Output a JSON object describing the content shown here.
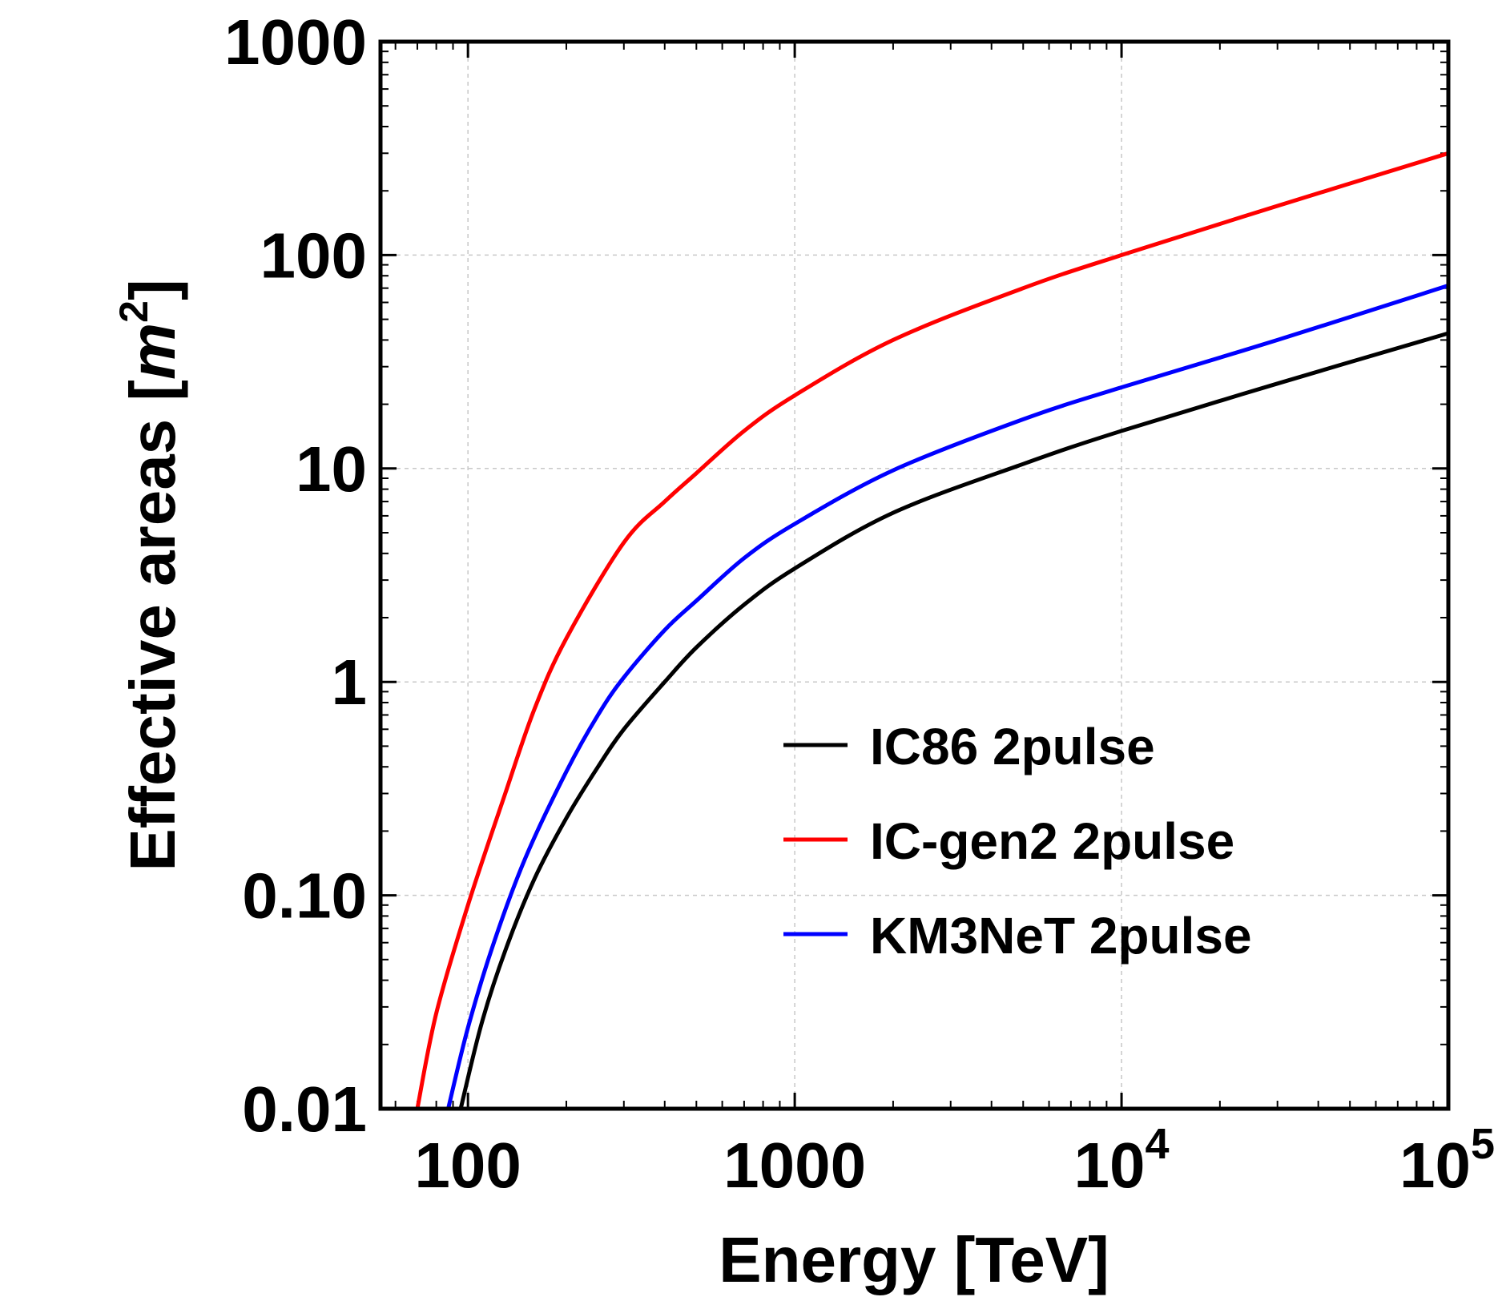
{
  "chart_data": {
    "type": "line",
    "title": "",
    "xlabel": "Energy [TeV]",
    "ylabel": {
      "main": "Effective areas [",
      "unit": "m",
      "exp": "2",
      "close": "]"
    },
    "xscale": "log",
    "yscale": "log",
    "xlim": [
      54,
      100000
    ],
    "ylim": [
      0.01,
      1000
    ],
    "grid": true,
    "legend_position": "center-right",
    "x_ticks": [
      {
        "value": 100,
        "label": "100"
      },
      {
        "value": 1000,
        "label": "1000"
      },
      {
        "value": 10000,
        "base": "10",
        "exp": "4"
      },
      {
        "value": 100000,
        "base": "10",
        "exp": "5"
      }
    ],
    "y_ticks": [
      {
        "value": 0.01,
        "label": "0.01"
      },
      {
        "value": 0.1,
        "label": "0.10"
      },
      {
        "value": 1,
        "label": "1"
      },
      {
        "value": 10,
        "label": "10"
      },
      {
        "value": 100,
        "label": "100"
      },
      {
        "value": 1000,
        "label": "1000"
      }
    ],
    "series": [
      {
        "name": "IC86 2pulse",
        "color": "#000000",
        "x": [
          95,
          110,
          130,
          160,
          200,
          250,
          300,
          400,
          500,
          700,
          1000,
          2000,
          5000,
          10000,
          30000,
          100000
        ],
        "values": [
          0.01,
          0.025,
          0.055,
          0.12,
          0.23,
          0.4,
          0.6,
          1.0,
          1.45,
          2.3,
          3.4,
          6.2,
          10.5,
          15,
          25,
          43
        ]
      },
      {
        "name": "IC-gen2 2pulse",
        "color": "#ff0000",
        "x": [
          70,
          80,
          100,
          130,
          160,
          200,
          300,
          400,
          500,
          700,
          1000,
          2000,
          5000,
          10000,
          30000,
          100000
        ],
        "values": [
          0.01,
          0.028,
          0.09,
          0.3,
          0.75,
          1.6,
          4.5,
          7.0,
          9.5,
          15,
          22,
          40,
          70,
          100,
          170,
          300
        ]
      },
      {
        "name": "KM3NeT 2pulse",
        "color": "#0000ff",
        "x": [
          87,
          100,
          120,
          150,
          200,
          250,
          300,
          400,
          500,
          700,
          1000,
          2000,
          5000,
          10000,
          30000,
          100000
        ],
        "values": [
          0.01,
          0.024,
          0.06,
          0.15,
          0.38,
          0.7,
          1.05,
          1.75,
          2.4,
          3.8,
          5.5,
          9.8,
          17,
          24,
          40,
          72
        ]
      }
    ]
  }
}
